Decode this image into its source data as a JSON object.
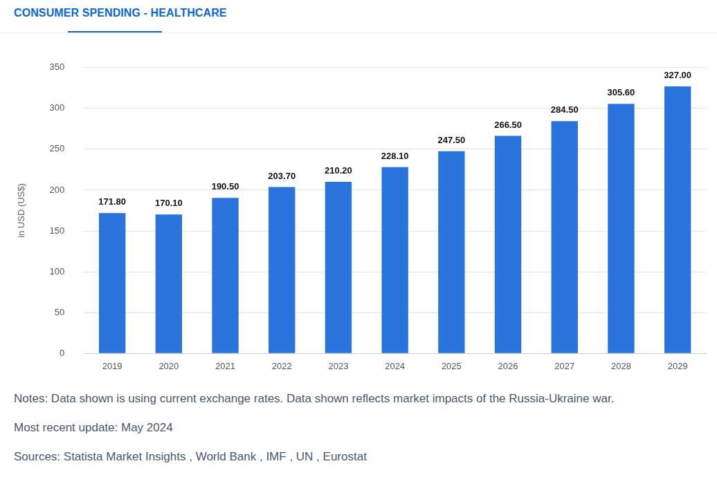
{
  "chart_data": {
    "type": "bar",
    "title": "CONSUMER SPENDING - HEALTHCARE",
    "y_label": "in USD (US$)",
    "categories": [
      "2019",
      "2020",
      "2021",
      "2022",
      "2023",
      "2024",
      "2025",
      "2026",
      "2027",
      "2028",
      "2029"
    ],
    "values": [
      171.8,
      170.1,
      190.5,
      203.7,
      210.2,
      228.1,
      247.5,
      266.5,
      284.5,
      305.6,
      327.0
    ],
    "value_labels": [
      "171.80",
      "170.10",
      "190.50",
      "203.70",
      "210.20",
      "228.10",
      "247.50",
      "266.50",
      "284.50",
      "305.60",
      "327.00"
    ],
    "color": "#2a75dd",
    "ylim": [
      0,
      350
    ],
    "yticks": [
      0,
      50,
      100,
      150,
      200,
      250,
      300,
      350
    ],
    "grid": true,
    "data_labels": true,
    "notes": [
      "Notes: Data shown is using current exchange rates. Data shown reflects market impacts of the Russia-Ukraine war.",
      "Most recent update: May 2024",
      "Sources: Statista Market Insights , World Bank , IMF , UN , Eurostat"
    ]
  }
}
